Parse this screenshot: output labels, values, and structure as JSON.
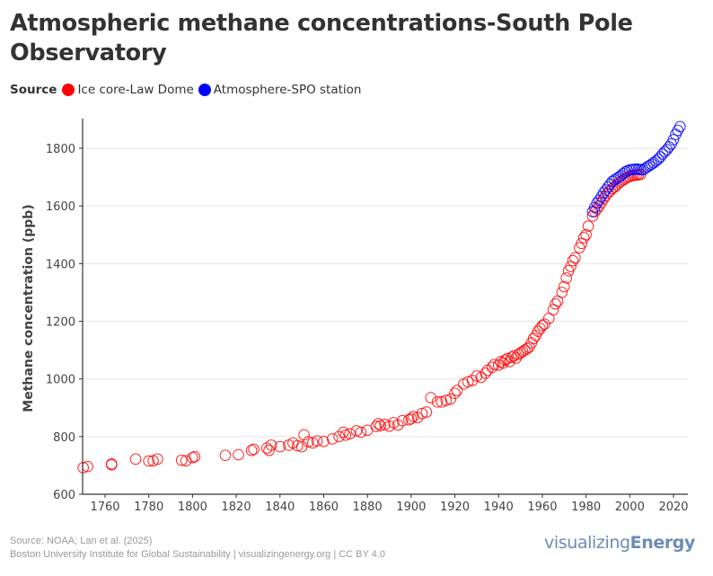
{
  "header": {
    "title": "Atmospheric methane concentrations-South Pole Observatory"
  },
  "legend": {
    "title": "Source",
    "items": [
      {
        "label": "Ice core-Law Dome",
        "color": "#ff0000"
      },
      {
        "label": "Atmosphere-SPO station",
        "color": "#0000ff"
      }
    ]
  },
  "footer": {
    "source": "Source: NOAA; Lan et al. (2025)",
    "credit": "Boston University Institute for Global Sustainability | visualizingenergy.org | CC BY 4.0",
    "brand_light": "visualizing",
    "brand_bold": "Energy"
  },
  "chart_data": {
    "type": "scatter",
    "title": "Atmospheric methane concentrations-South Pole Observatory",
    "xlabel": "",
    "ylabel": "Methane concentration (ppb)",
    "xlim": [
      1750,
      2026
    ],
    "ylim": [
      600,
      1900
    ],
    "x_ticks": [
      1760,
      1780,
      1800,
      1820,
      1840,
      1860,
      1880,
      1900,
      1920,
      1940,
      1960,
      1980,
      2000,
      2020
    ],
    "y_ticks": [
      600,
      800,
      1000,
      1200,
      1400,
      1600,
      1800
    ],
    "grid": "horizontal",
    "legend_position": "top-left",
    "series": [
      {
        "name": "Ice core-Law Dome",
        "color": "#ff0000",
        "marker": "open-circle",
        "points": [
          [
            1750,
            692
          ],
          [
            1752,
            696
          ],
          [
            1763,
            705
          ],
          [
            1763,
            702
          ],
          [
            1774,
            722
          ],
          [
            1780,
            715
          ],
          [
            1782,
            716
          ],
          [
            1784,
            722
          ],
          [
            1795,
            718
          ],
          [
            1797,
            716
          ],
          [
            1800,
            727
          ],
          [
            1801,
            730
          ],
          [
            1815,
            735
          ],
          [
            1821,
            737
          ],
          [
            1827,
            752
          ],
          [
            1828,
            756
          ],
          [
            1834,
            760
          ],
          [
            1835,
            752
          ],
          [
            1836,
            770
          ],
          [
            1840,
            765
          ],
          [
            1844,
            770
          ],
          [
            1846,
            778
          ],
          [
            1848,
            768
          ],
          [
            1850,
            765
          ],
          [
            1851,
            806
          ],
          [
            1853,
            782
          ],
          [
            1855,
            778
          ],
          [
            1857,
            785
          ],
          [
            1860,
            783
          ],
          [
            1864,
            792
          ],
          [
            1867,
            800
          ],
          [
            1869,
            815
          ],
          [
            1870,
            805
          ],
          [
            1872,
            810
          ],
          [
            1875,
            820
          ],
          [
            1877,
            815
          ],
          [
            1880,
            822
          ],
          [
            1884,
            835
          ],
          [
            1885,
            845
          ],
          [
            1886,
            838
          ],
          [
            1888,
            842
          ],
          [
            1890,
            836
          ],
          [
            1892,
            848
          ],
          [
            1894,
            840
          ],
          [
            1896,
            855
          ],
          [
            1899,
            858
          ],
          [
            1900,
            862
          ],
          [
            1901,
            870
          ],
          [
            1903,
            866
          ],
          [
            1905,
            880
          ],
          [
            1907,
            885
          ],
          [
            1909,
            935
          ],
          [
            1912,
            920
          ],
          [
            1914,
            920
          ],
          [
            1916,
            925
          ],
          [
            1918,
            930
          ],
          [
            1920,
            950
          ],
          [
            1921,
            960
          ],
          [
            1924,
            982
          ],
          [
            1926,
            990
          ],
          [
            1928,
            995
          ],
          [
            1930,
            1010
          ],
          [
            1932,
            1005
          ],
          [
            1934,
            1020
          ],
          [
            1935,
            1030
          ],
          [
            1937,
            1040
          ],
          [
            1938,
            1050
          ],
          [
            1940,
            1048
          ],
          [
            1941,
            1060
          ],
          [
            1942,
            1055
          ],
          [
            1943,
            1065
          ],
          [
            1944,
            1070
          ],
          [
            1945,
            1060
          ],
          [
            1946,
            1075
          ],
          [
            1947,
            1080
          ],
          [
            1948,
            1072
          ],
          [
            1949,
            1085
          ],
          [
            1950,
            1090
          ],
          [
            1951,
            1095
          ],
          [
            1952,
            1100
          ],
          [
            1953,
            1105
          ],
          [
            1954,
            1110
          ],
          [
            1955,
            1125
          ],
          [
            1956,
            1140
          ],
          [
            1957,
            1150
          ],
          [
            1958,
            1165
          ],
          [
            1959,
            1175
          ],
          [
            1960,
            1185
          ],
          [
            1961,
            1190
          ],
          [
            1963,
            1210
          ],
          [
            1965,
            1240
          ],
          [
            1966,
            1260
          ],
          [
            1967,
            1270
          ],
          [
            1969,
            1300
          ],
          [
            1970,
            1320
          ],
          [
            1971,
            1350
          ],
          [
            1972,
            1375
          ],
          [
            1973,
            1390
          ],
          [
            1974,
            1410
          ],
          [
            1975,
            1420
          ],
          [
            1977,
            1455
          ],
          [
            1978,
            1470
          ],
          [
            1979,
            1490
          ],
          [
            1980,
            1500
          ],
          [
            1981,
            1530
          ],
          [
            1983,
            1565
          ],
          [
            1984,
            1580
          ],
          [
            1985,
            1590
          ],
          [
            1986,
            1600
          ],
          [
            1987,
            1612
          ],
          [
            1988,
            1625
          ],
          [
            1989,
            1635
          ],
          [
            1990,
            1645
          ],
          [
            1991,
            1652
          ],
          [
            1992,
            1660
          ],
          [
            1993,
            1665
          ],
          [
            1994,
            1672
          ],
          [
            1995,
            1680
          ],
          [
            1996,
            1685
          ],
          [
            1997,
            1690
          ],
          [
            1998,
            1695
          ],
          [
            1999,
            1700
          ],
          [
            2000,
            1702
          ],
          [
            2001,
            1705
          ],
          [
            2002,
            1706
          ],
          [
            2003,
            1707
          ],
          [
            2004,
            1708
          ],
          [
            2005,
            1710
          ]
        ]
      },
      {
        "name": "Atmosphere-SPO station",
        "color": "#0000ff",
        "marker": "open-circle",
        "points": [
          [
            1983,
            1580
          ],
          [
            1984,
            1595
          ],
          [
            1985,
            1610
          ],
          [
            1986,
            1620
          ],
          [
            1987,
            1632
          ],
          [
            1988,
            1645
          ],
          [
            1989,
            1655
          ],
          [
            1990,
            1665
          ],
          [
            1991,
            1675
          ],
          [
            1992,
            1685
          ],
          [
            1993,
            1690
          ],
          [
            1994,
            1695
          ],
          [
            1995,
            1700
          ],
          [
            1996,
            1705
          ],
          [
            1997,
            1712
          ],
          [
            1998,
            1718
          ],
          [
            1999,
            1722
          ],
          [
            2000,
            1725
          ],
          [
            2001,
            1726
          ],
          [
            2002,
            1727
          ],
          [
            2003,
            1728
          ],
          [
            2004,
            1727
          ],
          [
            2005,
            1726
          ],
          [
            2006,
            1725
          ],
          [
            2007,
            1730
          ],
          [
            2008,
            1735
          ],
          [
            2009,
            1740
          ],
          [
            2010,
            1745
          ],
          [
            2011,
            1750
          ],
          [
            2012,
            1756
          ],
          [
            2013,
            1762
          ],
          [
            2014,
            1770
          ],
          [
            2015,
            1780
          ],
          [
            2016,
            1788
          ],
          [
            2017,
            1795
          ],
          [
            2018,
            1805
          ],
          [
            2019,
            1815
          ],
          [
            2020,
            1830
          ],
          [
            2021,
            1848
          ],
          [
            2022,
            1862
          ],
          [
            2023,
            1875
          ]
        ]
      }
    ]
  }
}
